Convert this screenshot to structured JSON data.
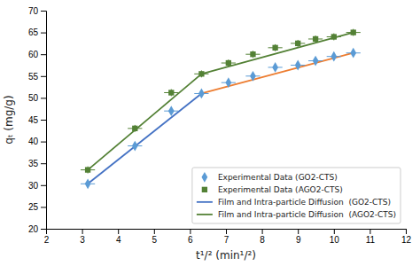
{
  "chart_data": {
    "type": "scatter",
    "xlabel": "t¹/² (min¹/²)",
    "ylabel": "qₜ (mg/g)",
    "xlim": [
      2,
      12
    ],
    "ylim": [
      20,
      70
    ],
    "xticks": [
      2,
      3,
      4,
      5,
      6,
      7,
      8,
      9,
      10,
      11,
      12
    ],
    "yticks": [
      20,
      25,
      30,
      35,
      40,
      45,
      50,
      55,
      60,
      65,
      70
    ],
    "grid": false,
    "legend": "bottom-right",
    "series": [
      {
        "name": "Experimental Data (GO2-CTS)",
        "type": "scatter",
        "marker": "diamond",
        "color": "#5B9BD5",
        "x": [
          3.16,
          4.47,
          5.48,
          6.32,
          7.07,
          7.75,
          8.37,
          9.0,
          9.49,
          10.0,
          10.54
        ],
        "values": [
          30.3,
          39.0,
          47.0,
          51.0,
          53.5,
          55.0,
          57.0,
          57.5,
          58.5,
          59.5,
          60.3
        ],
        "xerr": 0.2,
        "yerr": 0.8
      },
      {
        "name": "Experimental Data (AGO2-CTS)",
        "type": "scatter",
        "marker": "square",
        "color": "#538135",
        "x": [
          3.16,
          4.47,
          5.48,
          6.32,
          7.07,
          7.75,
          8.37,
          9.0,
          9.49,
          10.0,
          10.54
        ],
        "values": [
          33.5,
          43.0,
          51.2,
          55.5,
          58.0,
          60.0,
          61.5,
          62.5,
          63.5,
          64.0,
          65.0
        ],
        "xerr": 0.2,
        "yerr": 0.8
      },
      {
        "name": "Film and Intra-particle Diffusion  (GO2-CTS)",
        "type": "line",
        "color": "#4472C4",
        "x": [
          3.16,
          6.32
        ],
        "values": [
          30.3,
          51.0
        ]
      },
      {
        "type": "line",
        "color": "#ED7D31",
        "x": [
          6.32,
          10.54
        ],
        "values": [
          51.0,
          60.3
        ]
      },
      {
        "name": "Film and Intra-particle Diffusion  (AGO2-CTS)",
        "type": "line",
        "color": "#538135",
        "x": [
          3.16,
          6.32
        ],
        "values": [
          33.5,
          55.5
        ]
      },
      {
        "type": "line",
        "color": "#538135",
        "x": [
          6.32,
          10.54
        ],
        "values": [
          55.5,
          65.0
        ]
      }
    ]
  }
}
